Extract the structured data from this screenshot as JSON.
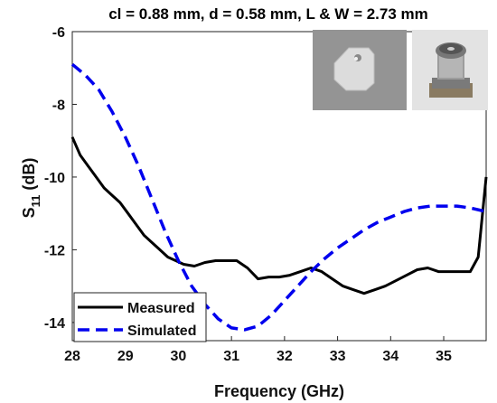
{
  "chart_data": {
    "type": "line",
    "title": "cl = 0.88 mm, d = 0.58 mm, L & W = 2.73 mm",
    "xlabel": "Frequency (GHz)",
    "ylabel_main": "S",
    "ylabel_sub": "11",
    "ylabel_unit": " (dB)",
    "xlim": [
      28,
      35.8
    ],
    "ylim": [
      -14.5,
      -6
    ],
    "xticks": [
      28,
      29,
      30,
      31,
      32,
      33,
      34,
      35
    ],
    "yticks": [
      -6,
      -8,
      -10,
      -12,
      -14
    ],
    "grid": false,
    "legend_position": "bottom-left",
    "series": [
      {
        "name": "Measured",
        "color": "#000000",
        "style": "solid",
        "x": [
          28.0,
          28.15,
          28.3,
          28.45,
          28.6,
          28.75,
          28.9,
          29.05,
          29.2,
          29.35,
          29.5,
          29.65,
          29.8,
          29.95,
          30.1,
          30.3,
          30.5,
          30.7,
          30.9,
          31.1,
          31.3,
          31.5,
          31.7,
          31.9,
          32.1,
          32.3,
          32.5,
          32.7,
          32.9,
          33.1,
          33.3,
          33.5,
          33.7,
          33.9,
          34.1,
          34.3,
          34.5,
          34.7,
          34.9,
          35.1,
          35.3,
          35.5,
          35.65,
          35.8
        ],
        "y": [
          -8.9,
          -9.4,
          -9.7,
          -10.0,
          -10.3,
          -10.5,
          -10.7,
          -11.0,
          -11.3,
          -11.6,
          -11.8,
          -12.0,
          -12.2,
          -12.3,
          -12.4,
          -12.45,
          -12.35,
          -12.3,
          -12.3,
          -12.3,
          -12.5,
          -12.8,
          -12.75,
          -12.75,
          -12.7,
          -12.6,
          -12.5,
          -12.6,
          -12.8,
          -13.0,
          -13.1,
          -13.2,
          -13.1,
          -13.0,
          -12.85,
          -12.7,
          -12.55,
          -12.5,
          -12.6,
          -12.6,
          -12.6,
          -12.6,
          -12.2,
          -10.0
        ]
      },
      {
        "name": "Simulated",
        "color": "#0000ee",
        "style": "dashed",
        "x": [
          28.0,
          28.25,
          28.5,
          28.75,
          29.0,
          29.25,
          29.5,
          29.75,
          30.0,
          30.25,
          30.5,
          30.75,
          31.0,
          31.25,
          31.5,
          31.75,
          32.0,
          32.25,
          32.5,
          32.75,
          33.0,
          33.25,
          33.5,
          33.75,
          34.0,
          34.25,
          34.5,
          34.75,
          35.0,
          35.25,
          35.5,
          35.8
        ],
        "y": [
          -6.9,
          -7.2,
          -7.6,
          -8.2,
          -8.9,
          -9.7,
          -10.6,
          -11.5,
          -12.3,
          -13.0,
          -13.5,
          -13.9,
          -14.15,
          -14.2,
          -14.1,
          -13.8,
          -13.4,
          -13.0,
          -12.6,
          -12.25,
          -11.95,
          -11.7,
          -11.45,
          -11.25,
          -11.1,
          -10.95,
          -10.85,
          -10.8,
          -10.8,
          -10.8,
          -10.85,
          -10.95
        ]
      }
    ]
  },
  "images": {
    "left_photo": "antenna-patch-photo",
    "right_photo": "connector-photo"
  }
}
